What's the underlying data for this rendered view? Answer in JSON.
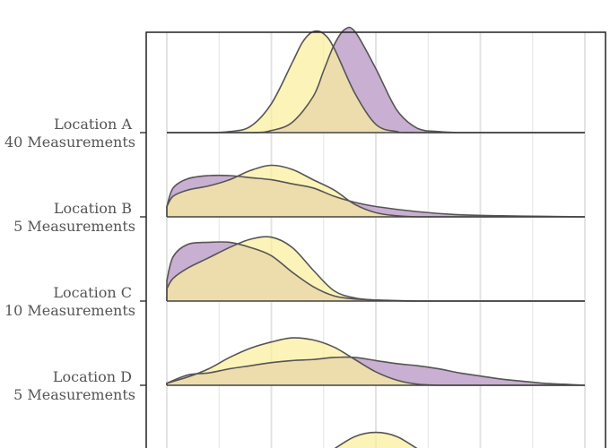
{
  "chart_data": {
    "type": "area",
    "subtype": "ridgeline-density",
    "title": "",
    "xlabel": "",
    "ylabel": "",
    "grid": true,
    "legend": "top (cut off, labels not visible)",
    "x_range": [
      0,
      20
    ],
    "colors": {
      "series_a_fill": "#c9afd1",
      "series_b_fill": "#fbef9e",
      "overlap_fill": "#d5b98a",
      "outline": "#555555",
      "grid": "#e3e3e3",
      "frame": "#222222"
    },
    "rows": [
      {
        "label": "Location A",
        "sublabel": "40 Measurements",
        "series": [
          {
            "x": [
              0,
              4,
              5,
              6,
              7,
              7.5,
              8,
              8.5,
              9,
              10,
              11,
              12,
              13,
              14,
              15,
              20
            ],
            "y": [
              0,
              0,
              0.02,
              0.1,
              0.35,
              0.6,
              0.85,
              1.0,
              0.98,
              0.62,
              0.22,
              0.04,
              0.01,
              0,
              0,
              0
            ]
          },
          {
            "x": [
              0,
              2,
              3,
              4,
              5,
              6,
              6.5,
              7,
              7.5,
              8,
              9,
              10,
              11,
              12,
              20
            ],
            "y": [
              0,
              0,
              0.01,
              0.06,
              0.28,
              0.68,
              0.88,
              0.98,
              0.96,
              0.82,
              0.38,
              0.08,
              0.01,
              0,
              0
            ]
          }
        ]
      },
      {
        "label": "Location B",
        "sublabel": "5 Measurements",
        "series": [
          {
            "x": [
              0,
              0.3,
              1,
              2,
              3,
              4,
              5,
              6,
              7,
              8,
              9,
              10,
              12,
              14,
              16,
              18,
              20
            ],
            "y": [
              0.1,
              0.28,
              0.37,
              0.4,
              0.4,
              0.38,
              0.36,
              0.32,
              0.28,
              0.2,
              0.14,
              0.1,
              0.05,
              0.02,
              0.01,
              0.005,
              0
            ]
          },
          {
            "x": [
              0,
              0.3,
              1,
              2,
              3,
              4,
              5,
              6,
              7,
              8,
              9,
              10,
              11,
              12,
              14,
              20
            ],
            "y": [
              0.1,
              0.2,
              0.26,
              0.3,
              0.36,
              0.45,
              0.5,
              0.46,
              0.36,
              0.26,
              0.12,
              0.04,
              0.01,
              0,
              0,
              0
            ]
          }
        ]
      },
      {
        "label": "Location C",
        "sublabel": "10 Measurements",
        "series": [
          {
            "x": [
              0,
              0.3,
              1,
              2,
              3,
              4,
              5,
              6,
              7,
              8,
              9,
              10,
              12,
              14,
              20
            ],
            "y": [
              0.2,
              0.43,
              0.55,
              0.57,
              0.57,
              0.52,
              0.44,
              0.28,
              0.14,
              0.05,
              0.02,
              0.01,
              0,
              0,
              0
            ]
          },
          {
            "x": [
              0,
              0.3,
              1,
              2,
              3,
              4,
              5,
              6,
              7,
              8,
              9,
              10,
              12,
              20
            ],
            "y": [
              0.12,
              0.22,
              0.32,
              0.42,
              0.52,
              0.6,
              0.62,
              0.52,
              0.3,
              0.1,
              0.03,
              0.01,
              0,
              0
            ]
          }
        ]
      },
      {
        "label": "Location D",
        "sublabel": "5 Measurements",
        "series": [
          {
            "x": [
              0,
              1,
              2,
              3,
              4,
              5,
              6,
              7,
              8,
              9,
              10,
              11,
              12,
              13,
              14,
              15,
              16,
              17,
              18,
              19,
              20
            ],
            "y": [
              0.02,
              0.1,
              0.12,
              0.16,
              0.19,
              0.22,
              0.24,
              0.25,
              0.27,
              0.27,
              0.24,
              0.21,
              0.19,
              0.16,
              0.12,
              0.09,
              0.06,
              0.04,
              0.02,
              0.01,
              0
            ]
          },
          {
            "x": [
              0,
              1,
              2,
              3,
              4,
              5,
              6,
              7,
              8,
              9,
              10,
              11,
              12,
              13,
              14,
              20
            ],
            "y": [
              0.02,
              0.08,
              0.16,
              0.27,
              0.36,
              0.42,
              0.46,
              0.44,
              0.37,
              0.25,
              0.13,
              0.05,
              0.01,
              0,
              0,
              0
            ]
          }
        ]
      },
      {
        "label": "",
        "sublabel": "",
        "series": [
          {
            "x": [
              0,
              4,
              6,
              7,
              8,
              9,
              10,
              11,
              12,
              13,
              14,
              20
            ],
            "y": [
              0,
              0,
              0.005,
              0.03,
              0.1,
              0.17,
              0.2,
              0.18,
              0.12,
              0.05,
              0.01,
              0
            ]
          },
          {
            "x": [
              0,
              4,
              6,
              7,
              8,
              9,
              10,
              11,
              12,
              13,
              14,
              20
            ],
            "y": [
              0,
              0,
              0.02,
              0.08,
              0.2,
              0.32,
              0.36,
              0.32,
              0.2,
              0.08,
              0.01,
              0
            ]
          }
        ]
      }
    ]
  }
}
